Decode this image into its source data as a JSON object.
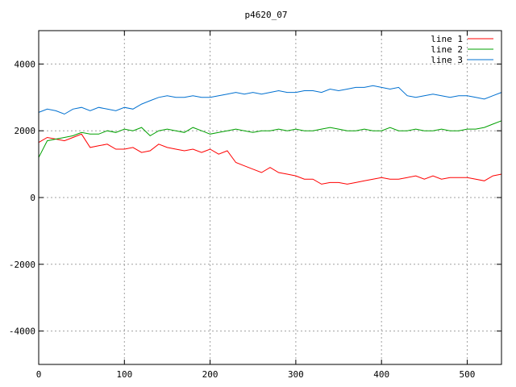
{
  "chart_data": {
    "type": "line",
    "title": "p4620_07",
    "xlabel": "",
    "ylabel": "",
    "xlim": [
      0,
      540
    ],
    "ylim": [
      -5000,
      5000
    ],
    "xticks": [
      0,
      100,
      200,
      300,
      400,
      500
    ],
    "yticks": [
      -4000,
      -2000,
      0,
      2000,
      4000
    ],
    "grid": true,
    "legend_position": "top-right",
    "x": [
      0,
      10,
      20,
      30,
      40,
      50,
      60,
      70,
      80,
      90,
      100,
      110,
      120,
      130,
      140,
      150,
      160,
      170,
      180,
      190,
      200,
      210,
      220,
      230,
      240,
      250,
      260,
      270,
      280,
      290,
      300,
      310,
      320,
      330,
      340,
      350,
      360,
      370,
      380,
      390,
      400,
      410,
      420,
      430,
      440,
      450,
      460,
      470,
      480,
      490,
      500,
      510,
      520,
      530,
      540
    ],
    "series": [
      {
        "name": "line 1",
        "color": "#ff0000",
        "values": [
          1650,
          1800,
          1750,
          1700,
          1800,
          1900,
          1500,
          1550,
          1600,
          1450,
          1450,
          1500,
          1350,
          1400,
          1600,
          1500,
          1450,
          1400,
          1450,
          1350,
          1450,
          1300,
          1400,
          1050,
          950,
          850,
          750,
          900,
          750,
          700,
          650,
          550,
          550,
          400,
          450,
          450,
          400,
          450,
          500,
          550,
          600,
          550,
          550,
          600,
          650,
          550,
          650,
          550,
          600,
          600,
          600,
          550,
          500,
          650,
          700
        ]
      },
      {
        "name": "line 2",
        "color": "#00a000",
        "values": [
          1200,
          1700,
          1750,
          1800,
          1850,
          1950,
          1900,
          1900,
          2000,
          1950,
          2050,
          2000,
          2100,
          1850,
          2000,
          2050,
          2000,
          1950,
          2100,
          2000,
          1900,
          1950,
          2000,
          2050,
          2000,
          1950,
          2000,
          2000,
          2050,
          2000,
          2050,
          2000,
          2000,
          2050,
          2100,
          2050,
          2000,
          2000,
          2050,
          2000,
          2000,
          2100,
          2000,
          2000,
          2050,
          2000,
          2000,
          2050,
          2000,
          2000,
          2050,
          2050,
          2100,
          2200,
          2300
        ]
      },
      {
        "name": "line 3",
        "color": "#0070d0",
        "values": [
          2550,
          2650,
          2600,
          2500,
          2650,
          2700,
          2600,
          2700,
          2650,
          2600,
          2700,
          2650,
          2800,
          2900,
          3000,
          3050,
          3000,
          3000,
          3050,
          3000,
          3000,
          3050,
          3100,
          3150,
          3100,
          3150,
          3100,
          3150,
          3200,
          3150,
          3150,
          3200,
          3200,
          3150,
          3250,
          3200,
          3250,
          3300,
          3300,
          3350,
          3300,
          3250,
          3300,
          3050,
          3000,
          3050,
          3100,
          3050,
          3000,
          3050,
          3050,
          3000,
          2950,
          3050,
          3150
        ]
      }
    ]
  }
}
